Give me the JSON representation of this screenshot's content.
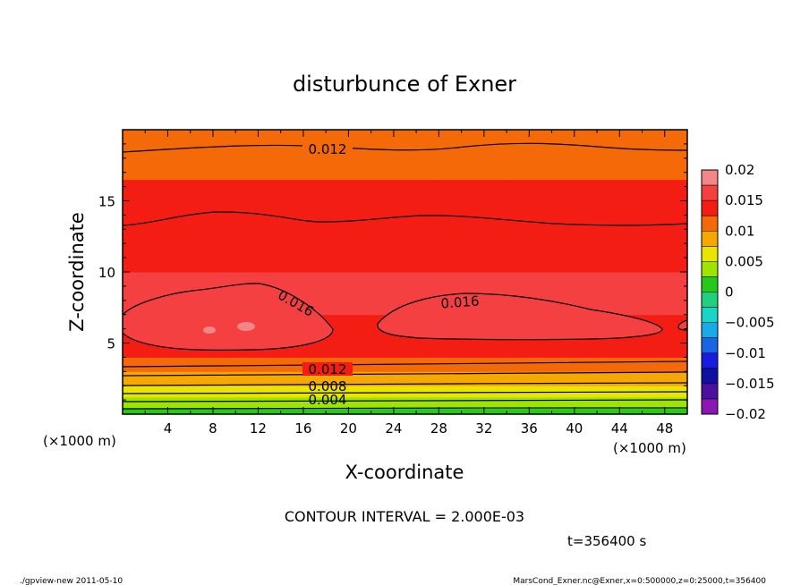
{
  "chart_data": {
    "type": "heatmap",
    "title": "disturbunce of Exner",
    "xlabel": "X-coordinate",
    "ylabel": "Z-coordinate",
    "x_unit": "(×1000 m)",
    "y_unit": "(×1000 m)",
    "xlim": [
      0,
      50
    ],
    "ylim": [
      0,
      20
    ],
    "x_ticks": [
      4,
      8,
      12,
      16,
      20,
      24,
      28,
      32,
      36,
      40,
      44,
      48
    ],
    "y_ticks": [
      5,
      10,
      15
    ],
    "contour_interval_text": "CONTOUR INTERVAL = 2.000E-03",
    "time_text": "t=356400 s",
    "contour_labels": [
      "0.012",
      "0.016",
      "0.016",
      "0.012",
      "0.008",
      "0.004"
    ],
    "colorbar": {
      "ticks": [
        "0.02",
        "0.015",
        "0.01",
        "0.005",
        "0",
        "−0.005",
        "−0.01",
        "−0.015",
        "−0.02"
      ],
      "levels": [
        {
          "from": 0.0175,
          "to": 0.02,
          "color": "#f38787"
        },
        {
          "from": 0.015,
          "to": 0.0175,
          "color": "#f44040"
        },
        {
          "from": 0.0125,
          "to": 0.015,
          "color": "#f31d14"
        },
        {
          "from": 0.01,
          "to": 0.0125,
          "color": "#f56a08"
        },
        {
          "from": 0.0075,
          "to": 0.01,
          "color": "#f7a800"
        },
        {
          "from": 0.005,
          "to": 0.0075,
          "color": "#e9e400"
        },
        {
          "from": 0.0025,
          "to": 0.005,
          "color": "#9de400"
        },
        {
          "from": 0.0,
          "to": 0.0025,
          "color": "#26c81a"
        },
        {
          "from": -0.0025,
          "to": 0.0,
          "color": "#20d080"
        },
        {
          "from": -0.005,
          "to": -0.0025,
          "color": "#1ad4c8"
        },
        {
          "from": -0.0075,
          "to": -0.005,
          "color": "#1aaae8"
        },
        {
          "from": -0.01,
          "to": -0.0075,
          "color": "#1a64e6"
        },
        {
          "from": -0.0125,
          "to": -0.01,
          "color": "#1a1ae0"
        },
        {
          "from": -0.015,
          "to": -0.0125,
          "color": "#1010a0"
        },
        {
          "from": -0.0175,
          "to": -0.015,
          "color": "#4a10a0"
        },
        {
          "from": -0.02,
          "to": -0.0175,
          "color": "#8a18b0"
        }
      ]
    },
    "vertical_profile": [
      {
        "z": 0.0,
        "value": 0.0012
      },
      {
        "z": 0.4,
        "value": 0.0022
      },
      {
        "z": 0.8,
        "value": 0.0032
      },
      {
        "z": 1.2,
        "value": 0.0045
      },
      {
        "z": 1.6,
        "value": 0.0058
      },
      {
        "z": 2.0,
        "value": 0.0072
      },
      {
        "z": 2.5,
        "value": 0.0088
      },
      {
        "z": 3.0,
        "value": 0.0104
      },
      {
        "z": 3.5,
        "value": 0.0118
      },
      {
        "z": 4.0,
        "value": 0.013
      },
      {
        "z": 5.0,
        "value": 0.0145
      },
      {
        "z": 7.0,
        "value": 0.0152
      },
      {
        "z": 10.0,
        "value": 0.0148
      },
      {
        "z": 13.0,
        "value": 0.0138
      },
      {
        "z": 16.5,
        "value": 0.0128
      },
      {
        "z": 18.5,
        "value": 0.0118
      },
      {
        "z": 20.0,
        "value": 0.0108
      }
    ]
  },
  "footer": {
    "left": "./gpview-new   2011-05-10",
    "right": "MarsCond_Exner.nc@Exner,x=0:500000,z=0:25000,t=356400"
  }
}
